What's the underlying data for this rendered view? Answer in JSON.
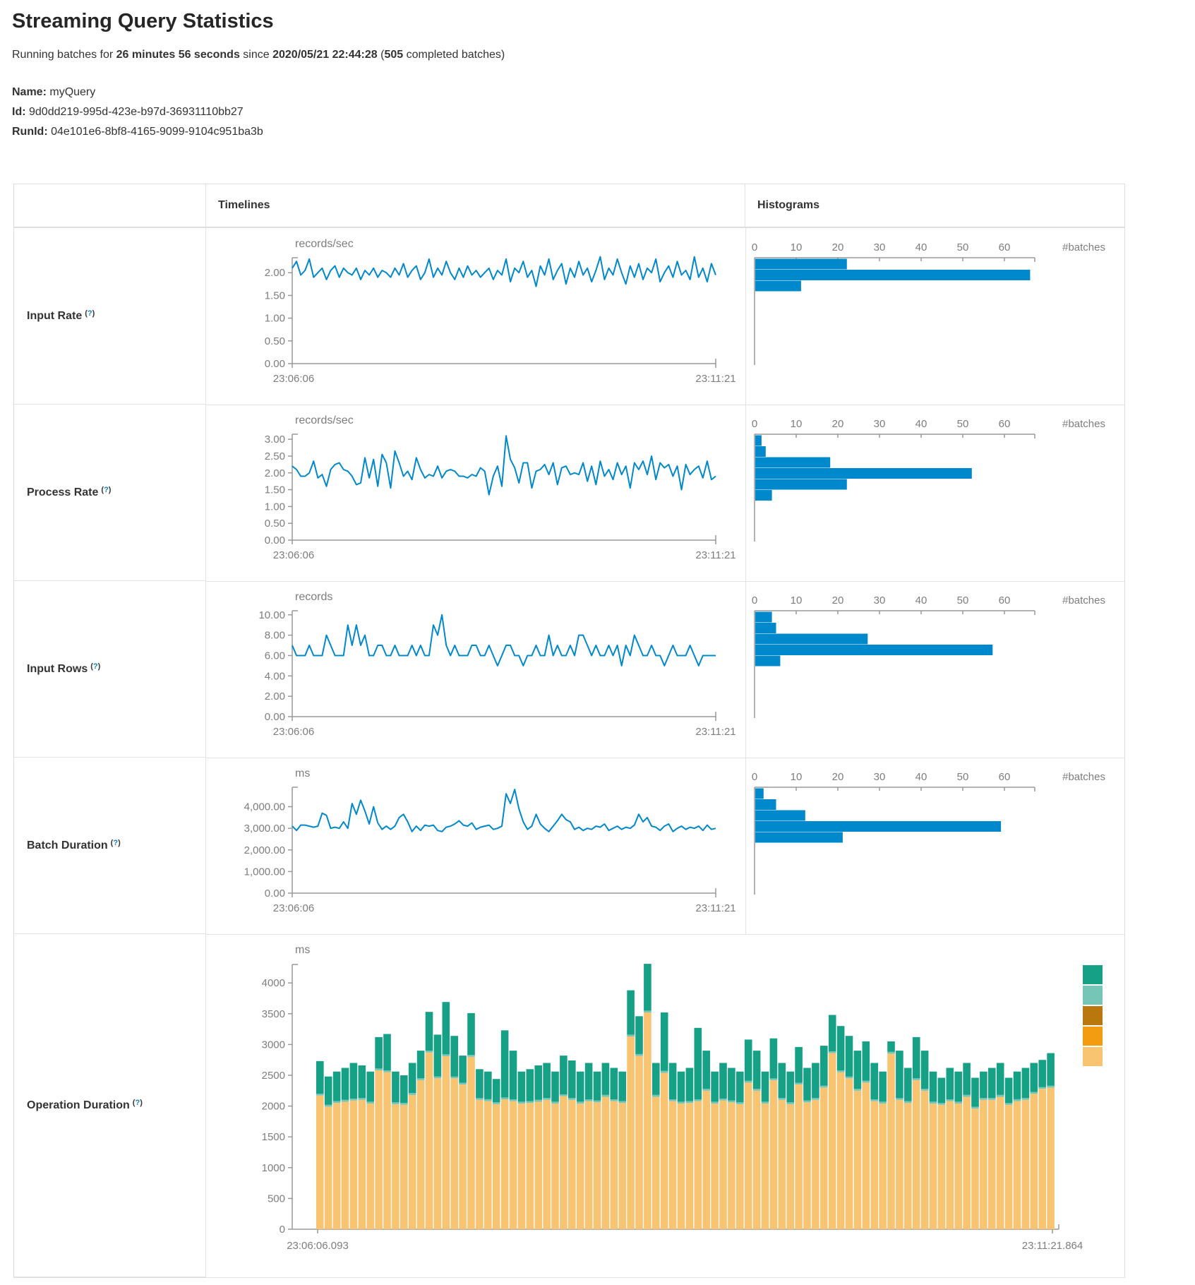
{
  "page": {
    "title": "Streaming Query Statistics",
    "subtitle": {
      "prefix": "Running batches for ",
      "duration": "26 minutes 56 seconds",
      "middle": " since ",
      "start_time": "2020/05/21 22:44:28",
      "paren_open": " (",
      "batches_count": "505",
      "suffix": " completed batches)"
    },
    "meta": {
      "name_label": "Name:",
      "name_value": "myQuery",
      "id_label": "Id:",
      "id_value": "9d0dd219-995d-423e-b97d-36931110bb27",
      "runid_label": "RunId:",
      "runid_value": "04e101e6-8bf8-4165-9099-9104c951ba3b"
    }
  },
  "table": {
    "headers": {
      "timelines": "Timelines",
      "histograms": "Histograms"
    },
    "help_open": "(",
    "help_q": "?",
    "help_close": ")",
    "rows": [
      {
        "label": "Input Rate"
      },
      {
        "label": "Process Rate"
      },
      {
        "label": "Input Rows"
      },
      {
        "label": "Batch Duration"
      },
      {
        "label": "Operation Duration"
      }
    ]
  },
  "colors": {
    "blue": "#0088cc",
    "axis": "#999999",
    "green": "#16A085",
    "lightteal": "#76C6B8",
    "ochre": "#B9770E",
    "orange": "#F39C12",
    "tan": "#F8C471"
  },
  "chart_data": [
    {
      "row": "Input Rate",
      "type": "line",
      "title": "records/sec",
      "x_labels": [
        "23:06:06",
        "23:11:21"
      ],
      "ymax": 2.33,
      "yticks": [
        {
          "v": 2.0,
          "label": "2.00"
        },
        {
          "v": 1.5,
          "label": "1.50"
        },
        {
          "v": 1.0,
          "label": "1.00"
        },
        {
          "v": 0.5,
          "label": "0.50"
        },
        {
          "v": 0.0,
          "label": "0.00"
        }
      ],
      "values": [
        2.1,
        2.25,
        1.95,
        2.05,
        2.3,
        1.9,
        2.0,
        2.1,
        1.85,
        2.05,
        2.15,
        1.9,
        2.1,
        2.0,
        1.95,
        2.1,
        1.85,
        2.05,
        1.95,
        2.1,
        1.9,
        2.05,
        2.0,
        1.9,
        2.1,
        1.95,
        2.2,
        1.9,
        2.05,
        2.15,
        1.85,
        2.0,
        2.3,
        1.9,
        2.1,
        1.95,
        2.25,
        2.0,
        1.85,
        2.1,
        1.9,
        2.15,
        1.95,
        2.05,
        1.9,
        2.0,
        2.1,
        1.85,
        2.05,
        1.95,
        2.3,
        1.8,
        2.1,
        2.0,
        2.25,
        1.9,
        2.05,
        1.7,
        2.15,
        1.95,
        2.3,
        1.85,
        2.05,
        2.2,
        1.75,
        2.1,
        1.9,
        2.25,
        1.95,
        2.1,
        1.8,
        2.05,
        2.35,
        1.85,
        2.1,
        1.95,
        2.3,
        2.0,
        1.75,
        2.15,
        1.9,
        2.2,
        1.85,
        2.1,
        2.0,
        2.3,
        1.8,
        2.0,
        2.15,
        1.9,
        2.25,
        1.95,
        2.05,
        1.85,
        2.35,
        1.9,
        2.1,
        1.8,
        2.2,
        1.95
      ],
      "histogram": {
        "xticks": [
          0,
          10,
          20,
          30,
          40,
          50,
          60
        ],
        "xlabel": "#batches",
        "values": [
          22,
          66,
          11
        ]
      }
    },
    {
      "row": "Process Rate",
      "type": "line",
      "title": "records/sec",
      "x_labels": [
        "23:06:06",
        "23:11:21"
      ],
      "ymax": 3.15,
      "yticks": [
        {
          "v": 3.0,
          "label": "3.00"
        },
        {
          "v": 2.5,
          "label": "2.50"
        },
        {
          "v": 2.0,
          "label": "2.00"
        },
        {
          "v": 1.5,
          "label": "1.50"
        },
        {
          "v": 1.0,
          "label": "1.00"
        },
        {
          "v": 0.5,
          "label": "0.50"
        },
        {
          "v": 0.0,
          "label": "0.00"
        }
      ],
      "values": [
        2.2,
        2.1,
        1.9,
        1.9,
        2.0,
        2.35,
        1.85,
        1.95,
        1.6,
        2.1,
        2.25,
        2.3,
        2.1,
        2.05,
        1.9,
        1.65,
        1.7,
        2.45,
        1.85,
        2.4,
        1.6,
        2.55,
        2.3,
        1.55,
        2.65,
        2.3,
        1.9,
        2.05,
        1.8,
        2.45,
        2.1,
        1.85,
        1.95,
        1.9,
        2.2,
        1.85,
        2.05,
        2.1,
        2.05,
        1.9,
        1.9,
        1.85,
        1.95,
        1.9,
        2.15,
        2.05,
        1.35,
        1.9,
        2.2,
        1.6,
        3.1,
        2.4,
        2.15,
        1.7,
        2.3,
        2.3,
        1.55,
        2.05,
        2.1,
        2.25,
        1.95,
        2.3,
        1.65,
        2.15,
        2.2,
        1.95,
        2.0,
        1.95,
        2.3,
        1.75,
        2.2,
        1.65,
        2.35,
        1.9,
        2.1,
        1.8,
        2.3,
        1.95,
        2.2,
        1.55,
        2.3,
        2.1,
        2.35,
        1.95,
        2.5,
        1.8,
        2.3,
        2.15,
        2.25,
        1.9,
        2.2,
        1.5,
        2.25,
        1.95,
        2.1,
        2.2,
        1.85,
        2.35,
        1.8,
        1.9
      ],
      "histogram": {
        "xticks": [
          0,
          10,
          20,
          30,
          40,
          50,
          60
        ],
        "xlabel": "#batches",
        "values": [
          1.5,
          2.5,
          18,
          52,
          22,
          4
        ]
      }
    },
    {
      "row": "Input Rows",
      "type": "line",
      "title": "records",
      "x_labels": [
        "23:06:06",
        "23:11:21"
      ],
      "ymax": 10.4,
      "yticks": [
        {
          "v": 10,
          "label": "10.00"
        },
        {
          "v": 8,
          "label": "8.00"
        },
        {
          "v": 6,
          "label": "6.00"
        },
        {
          "v": 4,
          "label": "4.00"
        },
        {
          "v": 2,
          "label": "2.00"
        },
        {
          "v": 0,
          "label": "0.00"
        }
      ],
      "values": [
        7,
        6,
        6,
        6,
        7,
        6,
        6,
        6,
        8,
        7,
        6,
        6,
        6,
        9,
        7,
        9,
        7,
        8,
        6,
        6,
        7,
        7,
        6,
        6,
        7,
        6,
        6,
        6,
        7,
        6,
        7,
        6,
        6,
        9,
        8,
        10,
        7,
        6,
        7,
        6,
        6,
        6,
        7,
        7,
        6,
        6,
        7,
        6,
        5,
        6,
        7,
        7,
        6,
        6,
        5,
        6,
        6,
        7,
        6,
        6,
        8,
        6,
        7,
        6,
        6,
        7,
        6,
        8,
        8,
        7,
        6,
        7,
        6,
        6,
        7,
        6,
        7,
        5,
        7,
        6,
        8,
        7,
        6,
        6,
        7,
        6,
        6,
        5,
        6,
        7,
        6,
        6,
        6,
        7,
        6,
        5,
        6,
        6,
        6,
        6
      ],
      "histogram": {
        "xticks": [
          0,
          10,
          20,
          30,
          40,
          50,
          60
        ],
        "xlabel": "#batches",
        "values": [
          4,
          5,
          27,
          57,
          6
        ]
      }
    },
    {
      "row": "Batch Duration",
      "type": "line",
      "title": "ms",
      "x_labels": [
        "23:06:06",
        "23:11:21"
      ],
      "ymax": 4900,
      "yticks": [
        {
          "v": 4000,
          "label": "4,000.00"
        },
        {
          "v": 3000,
          "label": "3,000.00"
        },
        {
          "v": 2000,
          "label": "2,000.00"
        },
        {
          "v": 1000,
          "label": "1,000.00"
        },
        {
          "v": 0,
          "label": "0.00"
        }
      ],
      "values": [
        3100,
        2900,
        3150,
        3150,
        3100,
        3050,
        3100,
        3700,
        3600,
        3000,
        3050,
        3000,
        3300,
        3000,
        4150,
        3650,
        4300,
        3800,
        3200,
        4000,
        3250,
        2950,
        3100,
        2950,
        3100,
        3500,
        3650,
        3300,
        2850,
        3100,
        2900,
        3150,
        3100,
        3150,
        2900,
        2850,
        3050,
        3100,
        3200,
        3350,
        3150,
        3100,
        3250,
        2950,
        3050,
        3100,
        3150,
        2950,
        3000,
        3100,
        4600,
        4150,
        4800,
        3900,
        3300,
        2950,
        3100,
        3650,
        3200,
        3000,
        2850,
        3100,
        3350,
        3650,
        3400,
        3300,
        2950,
        3050,
        2900,
        3000,
        2950,
        3100,
        3050,
        3200,
        2900,
        3000,
        3100,
        2950,
        3050,
        3000,
        3150,
        3650,
        3300,
        3500,
        3100,
        3050,
        2900,
        3100,
        3200,
        2850,
        3000,
        3100,
        2950,
        3050,
        3000,
        3100,
        2900,
        3150,
        2950,
        3000
      ],
      "histogram": {
        "xticks": [
          0,
          10,
          20,
          30,
          40,
          50,
          60
        ],
        "xlabel": "#batches",
        "values": [
          2,
          5,
          12,
          59,
          21
        ]
      }
    },
    {
      "row": "Operation Duration",
      "type": "stacked-bar",
      "title": "ms",
      "x_labels": [
        "23:06:06.093",
        "23:11:21.864"
      ],
      "ymax": 4300,
      "yticks": [
        {
          "v": 4000,
          "label": "4000"
        },
        {
          "v": 3500,
          "label": "3500"
        },
        {
          "v": 3000,
          "label": "3000"
        },
        {
          "v": 2500,
          "label": "2500"
        },
        {
          "v": 2000,
          "label": "2000"
        },
        {
          "v": 1500,
          "label": "1500"
        },
        {
          "v": 1000,
          "label": "1000"
        },
        {
          "v": 500,
          "label": "500"
        },
        {
          "v": 0,
          "label": "0"
        }
      ],
      "legend_colors": [
        "#16A085",
        "#76C6B8",
        "#B9770E",
        "#F39C12",
        "#F8C471"
      ],
      "sliver": 30,
      "bars": {
        "tan": [
          2170,
          1990,
          2050,
          2070,
          2090,
          2100,
          2040,
          2580,
          2550,
          2030,
          2020,
          2180,
          2420,
          2870,
          2450,
          2810,
          2450,
          2350,
          2800,
          2100,
          2080,
          2030,
          2110,
          2080,
          2040,
          2050,
          2070,
          2100,
          2040,
          2160,
          2100,
          2040,
          2080,
          2060,
          2150,
          2080,
          2050,
          3130,
          2815,
          3520,
          2150,
          2540,
          2080,
          2040,
          2050,
          2080,
          2250,
          2040,
          2090,
          2060,
          2030,
          2380,
          2250,
          2040,
          2420,
          2100,
          2030,
          2350,
          2060,
          2100,
          2300,
          2860,
          2550,
          2450,
          2250,
          2380,
          2080,
          2040,
          2850,
          2100,
          2050,
          2420,
          2250,
          2040,
          2020,
          2080,
          2040,
          2150,
          1960,
          2100,
          2100,
          2150,
          2020,
          2080,
          2100,
          2200,
          2280,
          2300
        ],
        "total": [
          2730,
          2480,
          2560,
          2620,
          2700,
          2660,
          2560,
          3120,
          3170,
          2560,
          2500,
          2700,
          2900,
          3530,
          3160,
          3690,
          3140,
          2820,
          3510,
          2600,
          2560,
          2440,
          3230,
          2900,
          2560,
          2600,
          2660,
          2700,
          2560,
          2820,
          2740,
          2560,
          2700,
          2560,
          2700,
          2620,
          2560,
          3880,
          3460,
          4310,
          2700,
          3520,
          2700,
          2560,
          2620,
          3270,
          2900,
          2560,
          2700,
          2620,
          2560,
          3080,
          2900,
          2560,
          3100,
          2700,
          2560,
          2960,
          2620,
          2700,
          2980,
          3480,
          3300,
          3140,
          2900,
          3050,
          2700,
          2560,
          3050,
          2900,
          2620,
          3120,
          2900,
          2560,
          2460,
          2620,
          2560,
          2700,
          2460,
          2560,
          2620,
          2700,
          2460,
          2560,
          2620,
          2700,
          2750,
          2860
        ]
      }
    }
  ]
}
